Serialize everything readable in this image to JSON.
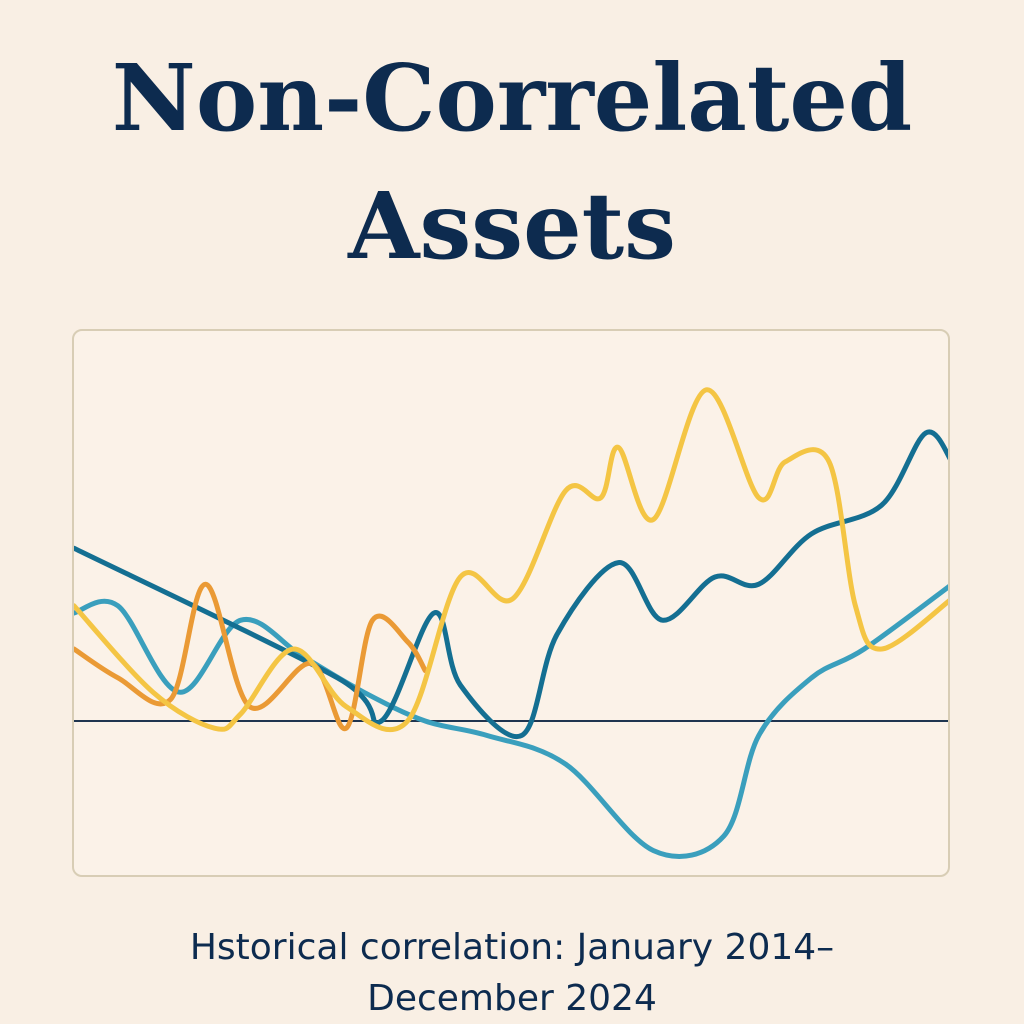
{
  "page": {
    "title_line_1": "Non-Correlated",
    "title_line_2": "Assets",
    "caption_line_1": "Hstorical correlation: January 2014–",
    "caption_line_2": "December 2024"
  },
  "colors": {
    "background": "#f9efe4",
    "title": "#0d2b4f",
    "baseline": "#1f3550",
    "light_blue": "#3a9fbd",
    "dark_teal": "#146f92",
    "orange": "#ea9a35",
    "yellow": "#f4c544"
  },
  "chart_data": {
    "type": "line",
    "title": "Non-Correlated Assets",
    "xlabel": "",
    "ylabel": "",
    "grid": false,
    "legend": "none",
    "baseline_y": 0,
    "ylim": [
      -1.0,
      2.5
    ],
    "xlim": [
      0,
      100
    ],
    "series": [
      {
        "color": "#3a9fbd",
        "x": [
          0,
          5,
          12,
          19,
          26,
          33,
          40,
          47,
          56,
          66,
          74,
          78,
          84,
          90,
          100
        ],
        "y": [
          0.75,
          0.8,
          0.2,
          0.7,
          0.45,
          0.2,
          0.0,
          -0.1,
          -0.3,
          -0.9,
          -0.8,
          -0.1,
          0.3,
          0.5,
          0.95
        ]
      },
      {
        "color": "#146f92",
        "x": [
          0,
          30,
          35,
          41,
          44,
          51,
          55,
          62,
          67,
          73,
          78,
          84,
          92,
          97,
          100
        ],
        "y": [
          1.2,
          0.3,
          0.0,
          0.75,
          0.25,
          -0.1,
          0.6,
          1.1,
          0.7,
          1.0,
          0.95,
          1.3,
          1.5,
          2.0,
          1.8
        ]
      },
      {
        "color": "#ea9a35",
        "x": [
          0,
          5,
          11,
          15,
          20,
          27,
          31,
          34,
          38,
          40
        ],
        "y": [
          0.5,
          0.3,
          0.15,
          0.95,
          0.1,
          0.4,
          -0.05,
          0.7,
          0.55,
          0.35
        ]
      },
      {
        "color": "#f4c544",
        "x": [
          0,
          9,
          16,
          19,
          25,
          31,
          38,
          44,
          50,
          56,
          60,
          62,
          66,
          72,
          78,
          81,
          86,
          89,
          92,
          100
        ],
        "y": [
          0.8,
          0.2,
          -0.05,
          0.05,
          0.5,
          0.1,
          0.0,
          1.0,
          0.85,
          1.6,
          1.55,
          1.9,
          1.4,
          2.3,
          1.55,
          1.8,
          1.8,
          0.8,
          0.5,
          0.85
        ]
      }
    ]
  }
}
